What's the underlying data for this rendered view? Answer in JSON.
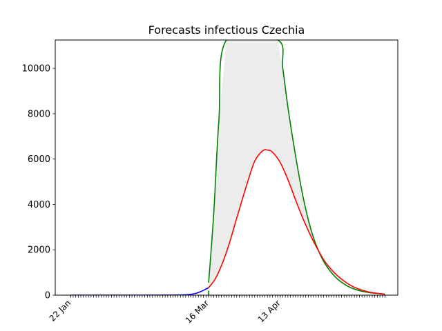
{
  "chart_data": {
    "type": "line",
    "title": "Forecasts infectious Czechia",
    "xlabel": "",
    "ylabel": "",
    "x_axis": {
      "type": "date",
      "range": [
        "2020-01-16",
        "2020-05-29"
      ],
      "tick_labels": [
        {
          "date": "2020-01-22",
          "label": "22 Jan"
        },
        {
          "date": "2020-03-16",
          "label": "16 Mar"
        },
        {
          "date": "2020-04-13",
          "label": "13 Apr"
        }
      ],
      "minor_tick_start": "2020-01-22",
      "minor_tick_end": "2020-05-24"
    },
    "ylim": [
      0,
      11250
    ],
    "yticks": [
      0,
      2000,
      4000,
      6000,
      8000,
      10000
    ],
    "grid": false,
    "legend": "none",
    "colors": {
      "observed": "#0000ff",
      "forecast": "#ff0000",
      "upper_bound": "#008000",
      "band_fill": "#ececec"
    },
    "series": [
      {
        "role": "observed",
        "color": "#0000ff",
        "points": [
          [
            "2020-01-22",
            0
          ],
          [
            "2020-02-15",
            0
          ],
          [
            "2020-03-01",
            3
          ],
          [
            "2020-03-06",
            12
          ],
          [
            "2020-03-09",
            35
          ],
          [
            "2020-03-11",
            80
          ],
          [
            "2020-03-13",
            160
          ],
          [
            "2020-03-15",
            270
          ],
          [
            "2020-03-16",
            330
          ]
        ]
      },
      {
        "role": "forecast",
        "color": "#ff0000",
        "points": [
          [
            "2020-03-16",
            330
          ],
          [
            "2020-03-19",
            800
          ],
          [
            "2020-03-23",
            1900
          ],
          [
            "2020-03-27",
            3400
          ],
          [
            "2020-03-31",
            4900
          ],
          [
            "2020-04-03",
            5900
          ],
          [
            "2020-04-06",
            6350
          ],
          [
            "2020-04-08",
            6400
          ],
          [
            "2020-04-10",
            6300
          ],
          [
            "2020-04-13",
            5850
          ],
          [
            "2020-04-16",
            5100
          ],
          [
            "2020-04-19",
            4200
          ],
          [
            "2020-04-22",
            3350
          ],
          [
            "2020-04-25",
            2600
          ],
          [
            "2020-04-28",
            1950
          ],
          [
            "2020-05-01",
            1400
          ],
          [
            "2020-05-05",
            900
          ],
          [
            "2020-05-09",
            540
          ],
          [
            "2020-05-13",
            300
          ],
          [
            "2020-05-18",
            130
          ],
          [
            "2020-05-24",
            40
          ]
        ]
      },
      {
        "role": "upper_bound",
        "color": "#008000",
        "points": [
          [
            "2020-03-16",
            550
          ],
          [
            "2020-03-18",
            3600
          ],
          [
            "2020-03-20",
            7700
          ],
          [
            "2020-03-23",
            11250
          ],
          [
            "2020-04-12",
            11250
          ],
          [
            "2020-04-14",
            10000
          ],
          [
            "2020-04-16",
            8300
          ],
          [
            "2020-04-19",
            6150
          ],
          [
            "2020-04-22",
            4300
          ],
          [
            "2020-04-25",
            2900
          ],
          [
            "2020-04-28",
            1950
          ],
          [
            "2020-05-01",
            1300
          ],
          [
            "2020-05-05",
            750
          ],
          [
            "2020-05-09",
            420
          ],
          [
            "2020-05-13",
            230
          ],
          [
            "2020-05-18",
            110
          ],
          [
            "2020-05-24",
            45
          ]
        ]
      },
      {
        "role": "lower_bound",
        "color": "#008000",
        "points": [
          [
            "2020-03-16",
            0
          ],
          [
            "2020-03-16",
            200
          ]
        ]
      }
    ]
  }
}
